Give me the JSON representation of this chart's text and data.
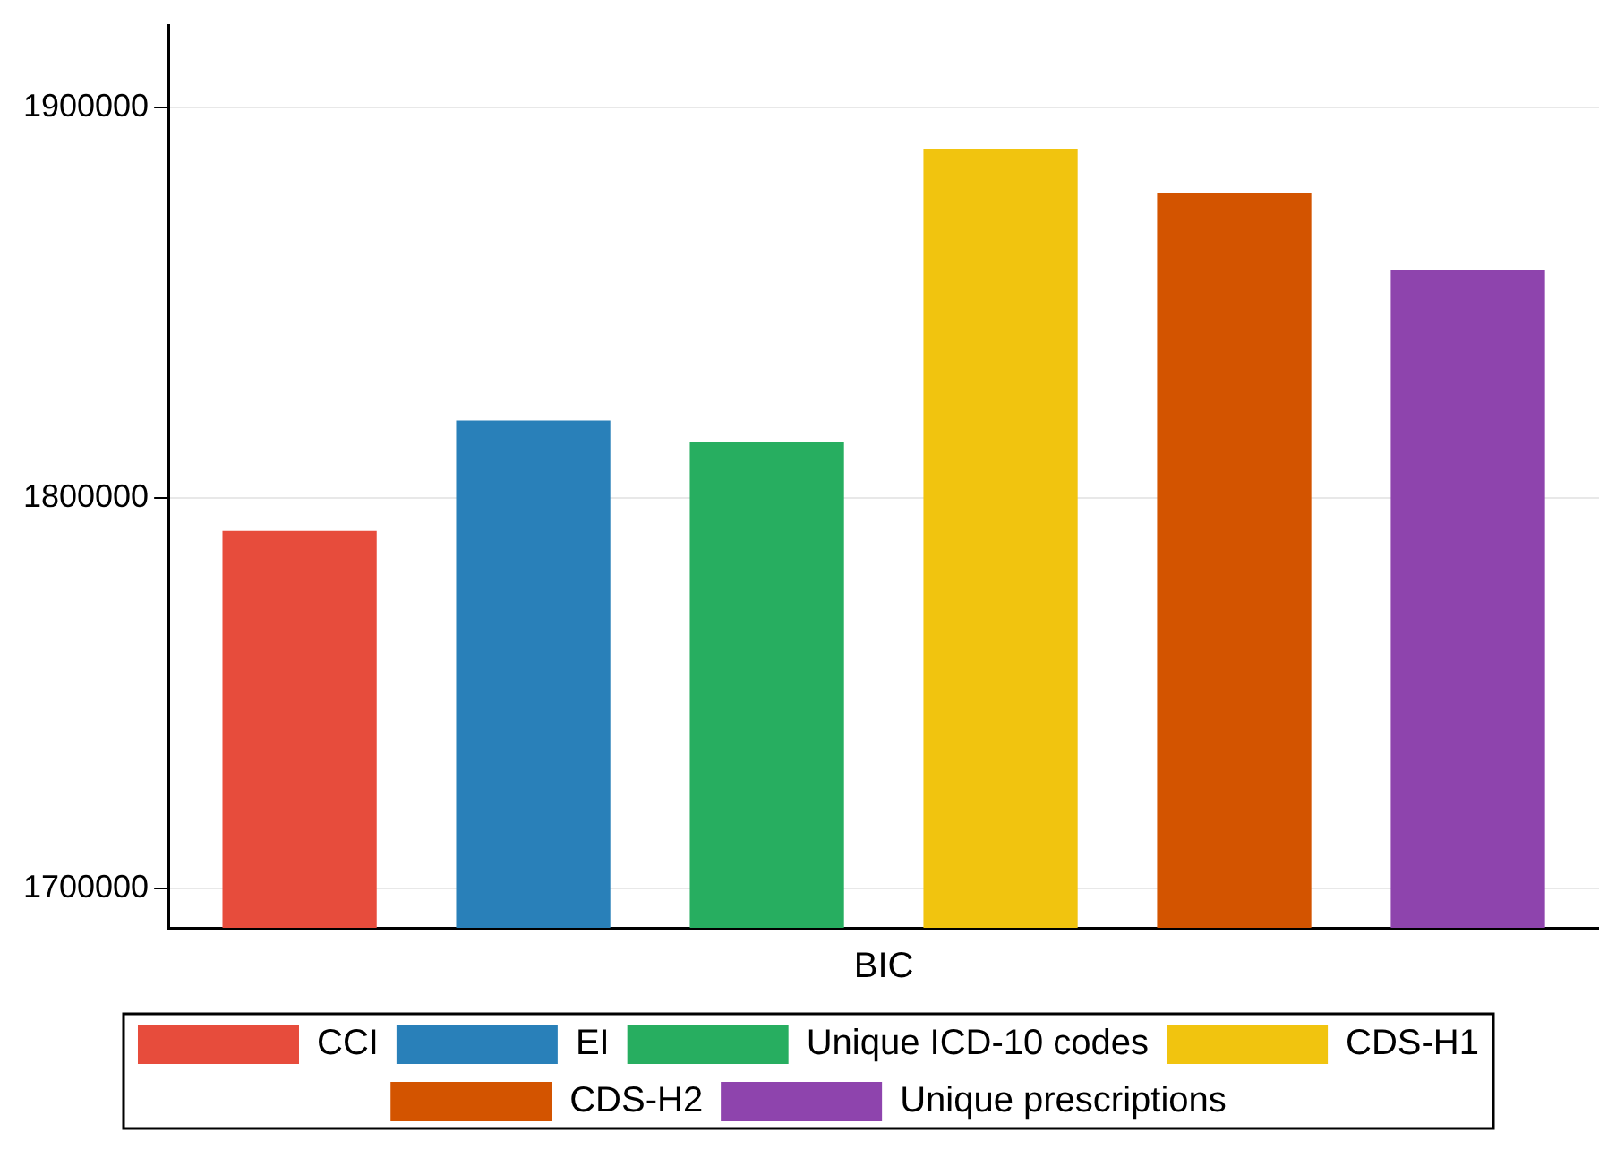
{
  "chart_data": {
    "type": "bar",
    "categories": [
      "BIC"
    ],
    "series": [
      {
        "name": "CCI",
        "color": "#e74c3c",
        "values": [
          1791600
        ]
      },
      {
        "name": "EI",
        "color": "#2980b9",
        "values": [
          1819800
        ]
      },
      {
        "name": "Unique ICD-10 codes",
        "color": "#27ae60",
        "values": [
          1814200
        ]
      },
      {
        "name": "CDS-H1",
        "color": "#f1c40f",
        "values": [
          1889400
        ]
      },
      {
        "name": "CDS-H2",
        "color": "#d35400",
        "values": [
          1878000
        ]
      },
      {
        "name": "Unique prescriptions",
        "color": "#8e44ad",
        "values": [
          1858300
        ]
      }
    ],
    "ylim": [
      1690000,
      1921000
    ],
    "yticks": [
      1700000,
      1800000,
      1900000
    ],
    "grid": "y",
    "legend": "bottom"
  }
}
